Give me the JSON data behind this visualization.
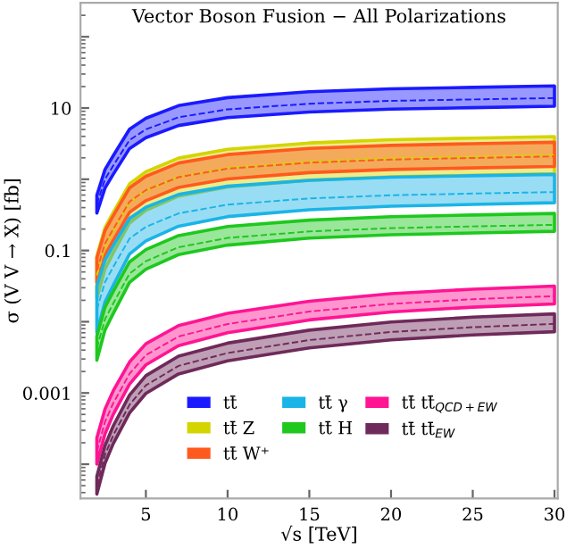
{
  "chart_data": {
    "type": "line",
    "title": "Vector Boson Fusion − All Polarizations",
    "xlabel": "√s [TeV]",
    "ylabel": "σ (V V → X) [fb]",
    "x": [
      2,
      2.5,
      3,
      4,
      5,
      7,
      10,
      15,
      20,
      25,
      30
    ],
    "xlim": [
      1,
      30.2
    ],
    "xticks": [
      5,
      10,
      15,
      20,
      25,
      30
    ],
    "ylim": [
      3.3e-05,
      300
    ],
    "yticks": [
      {
        "value": 0.0001,
        "label": null
      },
      {
        "value": 0.001,
        "label": "0.001"
      },
      {
        "value": 0.01,
        "label": null
      },
      {
        "value": 0.1,
        "label": "0.1"
      },
      {
        "value": 1,
        "label": null
      },
      {
        "value": 10,
        "label": "10"
      },
      {
        "value": 100,
        "label": null
      }
    ],
    "log": "y",
    "grid": false,
    "legend": "bottom",
    "line_style": "dashed",
    "marker": "none",
    "series": [
      {
        "name": "tt̄",
        "color": "#1a1aff",
        "values": [
          0.447,
          1.0,
          1.55,
          3.55,
          5.01,
          7.41,
          9.57,
          11.5,
          12.6,
          13.2,
          13.8
        ],
        "lower": [
          0.335,
          0.754,
          1.17,
          2.7,
          3.83,
          5.68,
          7.33,
          8.79,
          9.66,
          10.1,
          10.6
        ],
        "upper": [
          0.596,
          1.37,
          2.14,
          5.04,
          7.19,
          10.8,
          14.0,
          16.9,
          18.6,
          19.5,
          20.4
        ]
      },
      {
        "name": "tt̄ Z",
        "color": "#d4d400",
        "values": [
          0.0447,
          0.111,
          0.183,
          0.469,
          0.693,
          1.08,
          1.44,
          1.77,
          1.97,
          2.08,
          2.19
        ],
        "lower": [
          0.0214,
          0.055,
          0.092,
          0.244,
          0.366,
          0.58,
          0.78,
          0.97,
          1.08,
          1.14,
          1.2
        ],
        "upper": [
          0.083,
          0.21,
          0.34,
          0.86,
          1.27,
          1.98,
          2.63,
          3.23,
          3.59,
          3.78,
          3.98
        ]
      },
      {
        "name": "tt̄ W⁺",
        "color": "#ff5a1e",
        "values": [
          0.0525,
          0.125,
          0.199,
          0.485,
          0.705,
          1.07,
          1.41,
          1.71,
          1.89,
          1.99,
          2.09
        ],
        "lower": [
          0.0355,
          0.0857,
          0.138,
          0.343,
          0.5,
          0.767,
          1.01,
          1.24,
          1.37,
          1.44,
          1.51
        ],
        "upper": [
          0.079,
          0.191,
          0.306,
          0.755,
          1.1,
          1.69,
          2.22,
          2.71,
          2.99,
          3.16,
          3.31
        ]
      },
      {
        "name": "tt̄ γ",
        "color": "#1ab4e6",
        "values": [
          0.0148,
          0.0361,
          0.0585,
          0.147,
          0.215,
          0.332,
          0.44,
          0.538,
          0.596,
          0.63,
          0.661
        ],
        "lower": [
          0.00708,
          0.019,
          0.0323,
          0.0889,
          0.136,
          0.219,
          0.299,
          0.373,
          0.418,
          0.443,
          0.468
        ],
        "upper": [
          0.0316,
          0.074,
          0.117,
          0.281,
          0.405,
          0.611,
          0.798,
          0.966,
          1.07,
          1.12,
          1.17
        ]
      },
      {
        "name": "tt̄ H",
        "color": "#1ec81e",
        "values": [
          0.00427,
          0.0109,
          0.018,
          0.0473,
          0.0708,
          0.111,
          0.15,
          0.185,
          0.206,
          0.218,
          0.229
        ],
        "lower": [
          0.00288,
          0.00767,
          0.013,
          0.0357,
          0.0545,
          0.0875,
          0.119,
          0.149,
          0.166,
          0.176,
          0.186
        ],
        "upper": [
          0.00631,
          0.016,
          0.0265,
          0.069,
          0.103,
          0.162,
          0.217,
          0.267,
          0.298,
          0.315,
          0.331
        ]
      },
      {
        "name": "tt̄ tt̄$_{QCD+EW}$",
        "color": "#ff1493",
        "values": [
          0.000151,
          0.000393,
          0.000718,
          0.00186,
          0.0034,
          0.00621,
          0.00929,
          0.0139,
          0.0178,
          0.0207,
          0.0229
        ],
        "lower": [
          0.0001,
          0.000267,
          0.000498,
          0.00133,
          0.00248,
          0.00462,
          0.007,
          0.0106,
          0.0137,
          0.016,
          0.0178
        ],
        "upper": [
          0.000234,
          0.000596,
          0.00107,
          0.00272,
          0.00491,
          0.00883,
          0.0131,
          0.0194,
          0.0248,
          0.0286,
          0.0316
        ]
      },
      {
        "name": "tt̄ tt̄$_{EW}$",
        "color": "#6e2a5a",
        "values": [
          5.01e-05,
          0.000135,
          0.000254,
          0.000684,
          0.00128,
          0.0024,
          0.00364,
          0.00553,
          0.00718,
          0.00838,
          0.00933
        ],
        "lower": [
          3.8e-05,
          0.000103,
          0.000194,
          0.000525,
          0.000986,
          0.00185,
          0.00282,
          0.00429,
          0.00557,
          0.00652,
          0.00724
        ],
        "upper": [
          6.76e-05,
          0.000183,
          0.000344,
          0.000933,
          0.00175,
          0.00329,
          0.00501,
          0.00762,
          0.00991,
          0.0116,
          0.0129
        ]
      }
    ]
  }
}
